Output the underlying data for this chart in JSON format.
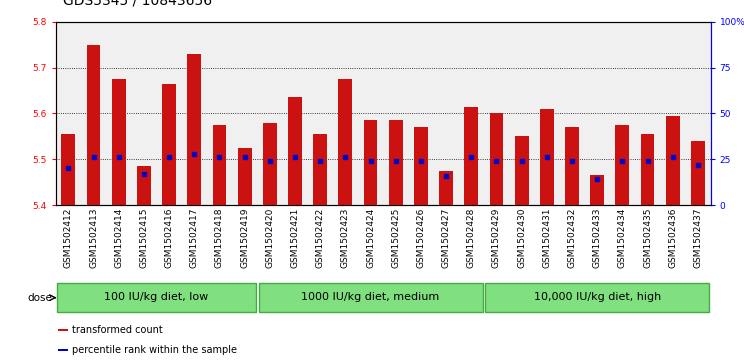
{
  "title": "GDS5345 / 10843656",
  "samples": [
    "GSM1502412",
    "GSM1502413",
    "GSM1502414",
    "GSM1502415",
    "GSM1502416",
    "GSM1502417",
    "GSM1502418",
    "GSM1502419",
    "GSM1502420",
    "GSM1502421",
    "GSM1502422",
    "GSM1502423",
    "GSM1502424",
    "GSM1502425",
    "GSM1502426",
    "GSM1502427",
    "GSM1502428",
    "GSM1502429",
    "GSM1502430",
    "GSM1502431",
    "GSM1502432",
    "GSM1502433",
    "GSM1502434",
    "GSM1502435",
    "GSM1502436",
    "GSM1502437"
  ],
  "bar_tops": [
    5.555,
    5.75,
    5.675,
    5.485,
    5.665,
    5.73,
    5.575,
    5.525,
    5.58,
    5.635,
    5.555,
    5.675,
    5.585,
    5.585,
    5.57,
    5.475,
    5.615,
    5.6,
    5.55,
    5.61,
    5.57,
    5.465,
    5.575,
    5.555,
    5.595,
    5.54
  ],
  "bar_base": 5.4,
  "percentile_values": [
    20,
    26,
    26,
    17,
    26,
    28,
    26,
    26,
    24,
    26,
    24,
    26,
    24,
    24,
    24,
    16,
    26,
    24,
    24,
    26,
    24,
    14,
    24,
    24,
    26,
    22
  ],
  "ylim": [
    5.4,
    5.8
  ],
  "yticks": [
    5.4,
    5.5,
    5.6,
    5.7,
    5.8
  ],
  "right_yticks": [
    0,
    25,
    50,
    75,
    100
  ],
  "right_ytick_labels": [
    "0",
    "25",
    "50",
    "75",
    "100%"
  ],
  "bar_color": "#cc1111",
  "dot_color": "#0000cc",
  "background_color": "#f0f0f0",
  "green_color": "#80e080",
  "green_border": "#44aa44",
  "groups": [
    {
      "label": "100 IU/kg diet, low",
      "start": 0,
      "end": 8
    },
    {
      "label": "1000 IU/kg diet, medium",
      "start": 8,
      "end": 17
    },
    {
      "label": "10,000 IU/kg diet, high",
      "start": 17,
      "end": 26
    }
  ],
  "legend_items": [
    {
      "color": "#cc1111",
      "label": "transformed count"
    },
    {
      "color": "#0000cc",
      "label": "percentile rank within the sample"
    }
  ],
  "dose_label": "dose",
  "title_fontsize": 10,
  "tick_fontsize": 6.5,
  "label_fontsize": 7.5,
  "group_fontsize": 8
}
